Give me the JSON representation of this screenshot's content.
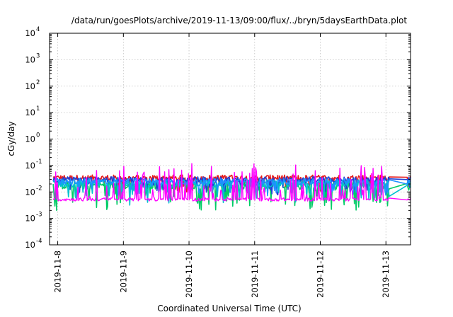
{
  "chart_data": {
    "type": "line",
    "title": "/data/run/goesPlots/archive/2019-11-13/09:00/flux/../bryn/5daysEarthData.plot",
    "xlabel": "Coordinated Universal Time (UTC)",
    "ylabel": "cGy/day",
    "y_scale": "log",
    "ylim": [
      0.0001,
      10000
    ],
    "y_ticks": [
      {
        "value": 0.0001,
        "base": "10",
        "exp": "-4"
      },
      {
        "value": 0.001,
        "base": "10",
        "exp": "-3"
      },
      {
        "value": 0.01,
        "base": "10",
        "exp": "-2"
      },
      {
        "value": 0.1,
        "base": "10",
        "exp": "-1"
      },
      {
        "value": 1,
        "base": "10",
        "exp": "0"
      },
      {
        "value": 10,
        "base": "10",
        "exp": "1"
      },
      {
        "value": 100,
        "base": "10",
        "exp": "2"
      },
      {
        "value": 1000,
        "base": "10",
        "exp": "3"
      },
      {
        "value": 10000,
        "base": "10",
        "exp": "4"
      }
    ],
    "xlim": [
      "2019-11-07 21:00",
      "2019-11-13 09:00"
    ],
    "x_ticks": [
      "2019-11-8",
      "2019-11-9",
      "2019-11-10",
      "2019-11-11",
      "2019-11-12",
      "2019-11-13"
    ],
    "x_tick_dates": [
      "2019-11-08",
      "2019-11-09",
      "2019-11-10",
      "2019-11-11",
      "2019-11-12",
      "2019-11-13"
    ],
    "grid": true,
    "legend": "none",
    "series": [
      {
        "color": "#e41a1c",
        "base": 0.034,
        "spread": 0.22,
        "spike_low": 0.45
      },
      {
        "color": "#00cc66",
        "base": 0.018,
        "spread": 0.3,
        "spike_low": 0.9
      },
      {
        "color": "#1f3fd6",
        "base": 0.029,
        "spread": 0.22,
        "spike_low": 0.5
      },
      {
        "color": "#00c0d0",
        "base": 0.021,
        "spread": 0.28,
        "spike_low": 0.7
      },
      {
        "color": "#1e90ff",
        "base": 0.025,
        "spread": 0.22,
        "spike_low": 0.55
      },
      {
        "color": "#ff00ff",
        "base": 0.0052,
        "spread": 0.12,
        "spike_high": 1.3
      }
    ]
  }
}
